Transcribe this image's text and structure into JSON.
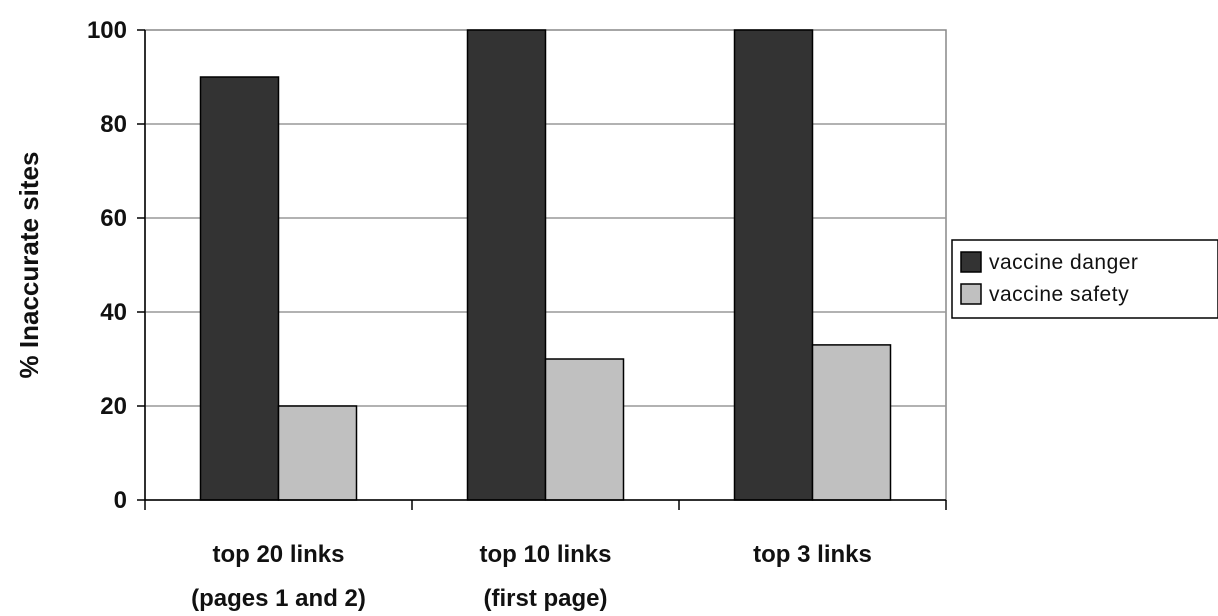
{
  "chart_data": {
    "type": "bar",
    "categories": [
      [
        "top 20 links",
        "(pages 1 and 2)"
      ],
      [
        "top 10 links",
        "(first page)"
      ],
      [
        "top 3 links"
      ]
    ],
    "series": [
      {
        "name": "vaccine danger",
        "values": [
          90,
          100,
          100
        ],
        "color": "#333333"
      },
      {
        "name": "vaccine safety",
        "values": [
          20,
          30,
          33
        ],
        "color": "#c0c0c0"
      }
    ],
    "xlabel": "",
    "ylabel": "% Inaccurate sites",
    "ylim": [
      0,
      100
    ],
    "yticks": [
      0,
      20,
      40,
      60,
      80,
      100
    ],
    "grid": true,
    "legend_position": "right"
  }
}
